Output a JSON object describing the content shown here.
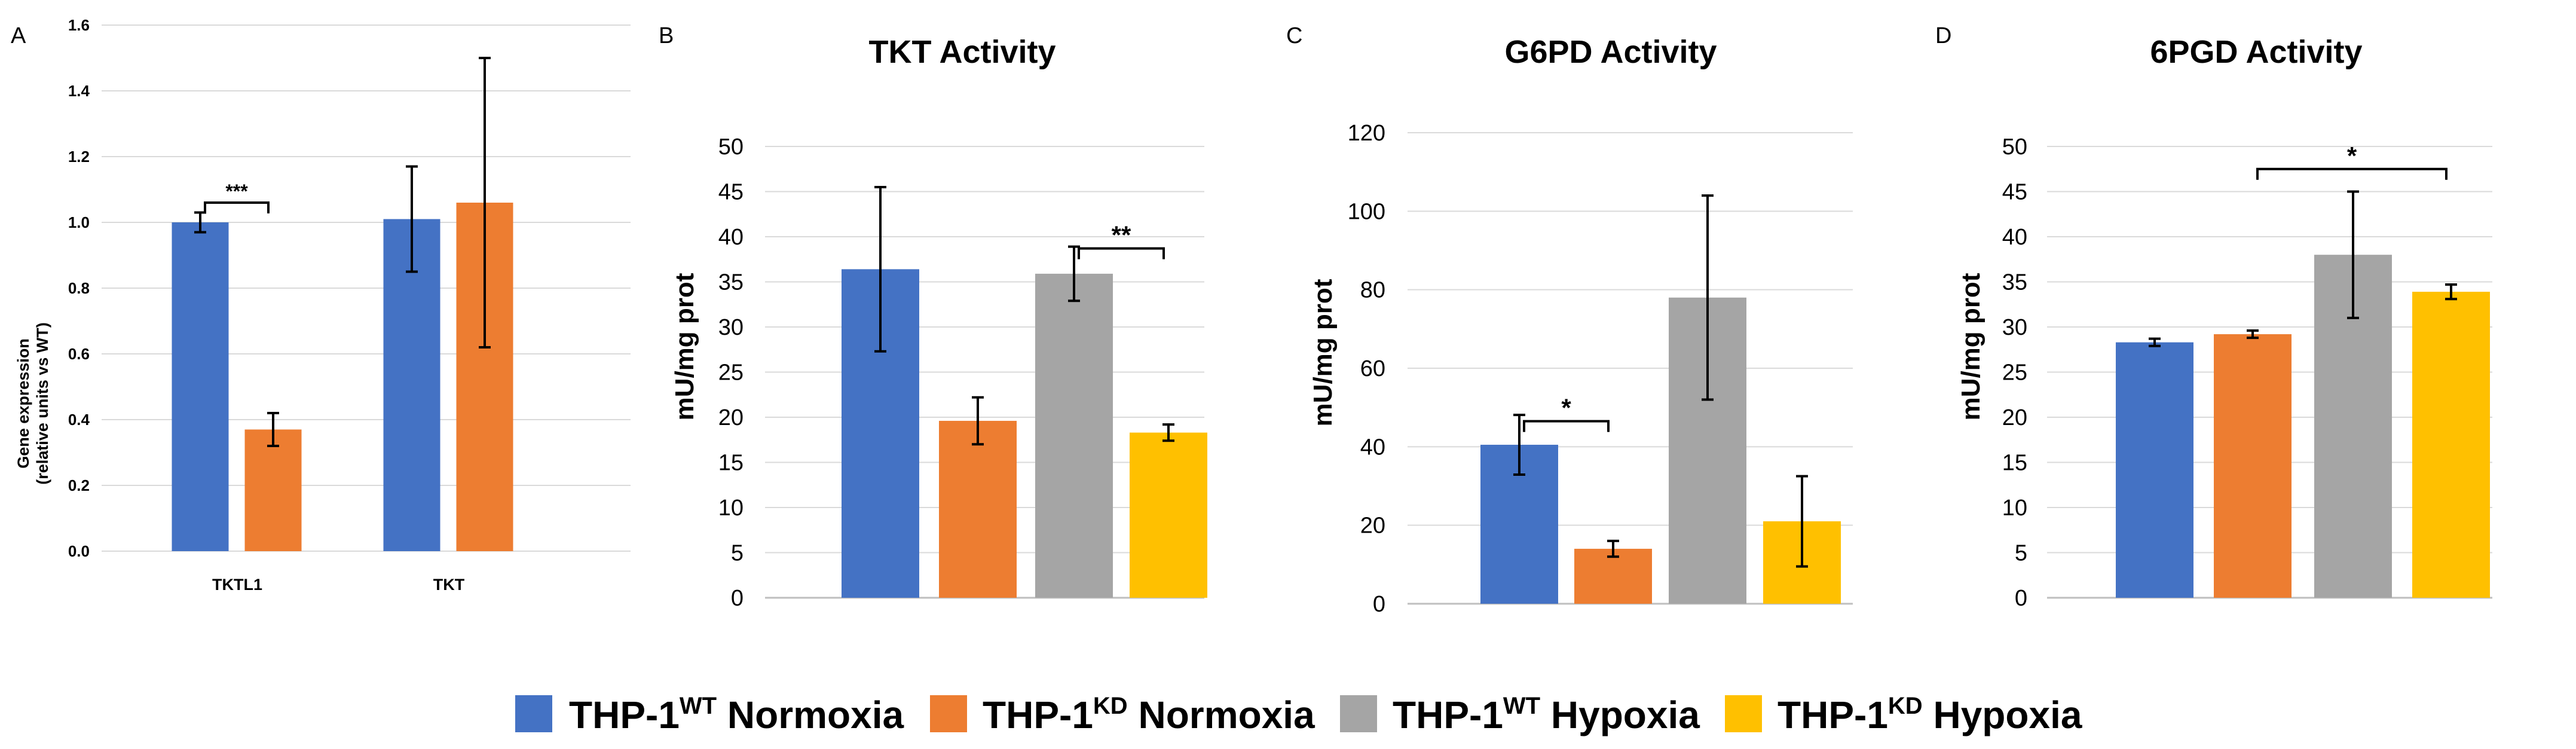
{
  "figure": {
    "legend": [
      {
        "name_main": "THP-1",
        "name_sup": "WT",
        "name_rest": " Normoxia",
        "color": "#4472C4"
      },
      {
        "name_main": "THP-1",
        "name_sup": "KD",
        "name_rest": " Normoxia",
        "color": "#ED7D31"
      },
      {
        "name_main": "THP-1",
        "name_sup": "WT",
        "name_rest": " Hypoxia",
        "color": "#A5A5A5"
      },
      {
        "name_main": "THP-1",
        "name_sup": "KD",
        "name_rest": " Hypoxia",
        "color": "#FFC000"
      }
    ]
  },
  "chart_data": [
    {
      "panel": "A",
      "type": "bar",
      "title": "",
      "ylabel_line1": "Gene expression",
      "ylabel_line2": "(relative units vs WT)",
      "xlabel": "",
      "ylim": [
        0,
        1.6
      ],
      "yticks": [
        "0.0",
        "0.2",
        "0.4",
        "0.6",
        "0.8",
        "1.0",
        "1.2",
        "1.4",
        "1.6"
      ],
      "ytick_values": [
        0,
        0.2,
        0.4,
        0.6,
        0.8,
        1.0,
        1.2,
        1.4,
        1.6
      ],
      "grid": true,
      "categories": [
        "TKTL1",
        "TKT"
      ],
      "series": [
        {
          "name": "WT",
          "color": "#4472C4",
          "values": [
            1.0,
            1.01
          ],
          "errors": [
            0.03,
            0.16
          ]
        },
        {
          "name": "KD",
          "color": "#ED7D31",
          "values": [
            0.37,
            1.06
          ],
          "errors": [
            0.05,
            0.44
          ]
        }
      ],
      "significance": [
        {
          "label": "***",
          "category": 0,
          "from": 0,
          "to": 1,
          "y": 1.06
        }
      ]
    },
    {
      "panel": "B",
      "type": "bar",
      "title": "TKT Activity",
      "ylabel": "mU/mg prot",
      "xlabel": "",
      "ylim": [
        0,
        50
      ],
      "yticks": [
        "0",
        "5",
        "10",
        "15",
        "20",
        "25",
        "30",
        "35",
        "40",
        "45",
        "50"
      ],
      "ytick_values": [
        0,
        5,
        10,
        15,
        20,
        25,
        30,
        35,
        40,
        45,
        50
      ],
      "grid": true,
      "categories": [
        "THP-1 WT Normoxia",
        "THP-1 KD Normoxia",
        "THP-1 WT Hypoxia",
        "THP-1 KD Hypoxia"
      ],
      "values": [
        36.4,
        19.6,
        35.9,
        18.3
      ],
      "errors": [
        9.1,
        2.6,
        3.0,
        0.9
      ],
      "colors": [
        "#4472C4",
        "#ED7D31",
        "#A5A5A5",
        "#FFC000"
      ],
      "significance": [
        {
          "label": "**",
          "from": 2,
          "to": 3,
          "y": 38.7
        }
      ]
    },
    {
      "panel": "C",
      "type": "bar",
      "title": "G6PD Activity",
      "ylabel": "mU/mg prot",
      "xlabel": "",
      "ylim": [
        0,
        120
      ],
      "yticks": [
        "0",
        "20",
        "40",
        "60",
        "80",
        "100",
        "120"
      ],
      "ytick_values": [
        0,
        20,
        40,
        60,
        80,
        100,
        120
      ],
      "grid": true,
      "categories": [
        "THP-1 WT Normoxia",
        "THP-1 KD Normoxia",
        "THP-1 WT Hypoxia",
        "THP-1 KD Hypoxia"
      ],
      "values": [
        40.5,
        14.0,
        78.0,
        21.0
      ],
      "errors": [
        7.6,
        2.0,
        26.0,
        11.5
      ],
      "colors": [
        "#4472C4",
        "#ED7D31",
        "#A5A5A5",
        "#FFC000"
      ],
      "significance": [
        {
          "label": "*",
          "from": 0,
          "to": 1,
          "y": 46.5
        }
      ]
    },
    {
      "panel": "D",
      "type": "bar",
      "title": "6PGD Activity",
      "ylabel": "mU/mg prot",
      "xlabel": "",
      "ylim": [
        0,
        50
      ],
      "yticks": [
        "0",
        "5",
        "10",
        "15",
        "20",
        "25",
        "30",
        "35",
        "40",
        "45",
        "50"
      ],
      "ytick_values": [
        0,
        5,
        10,
        15,
        20,
        25,
        30,
        35,
        40,
        45,
        50
      ],
      "grid": true,
      "categories": [
        "THP-1 WT Normoxia",
        "THP-1 KD Normoxia",
        "THP-1 WT Hypoxia",
        "THP-1 KD Hypoxia"
      ],
      "values": [
        28.3,
        29.2,
        38.0,
        33.9
      ],
      "errors": [
        0.4,
        0.4,
        7.0,
        0.8
      ],
      "colors": [
        "#4472C4",
        "#ED7D31",
        "#A5A5A5",
        "#FFC000"
      ],
      "significance": [
        {
          "label": "*",
          "from": 1,
          "to": 3,
          "y": 47.5
        }
      ]
    }
  ]
}
